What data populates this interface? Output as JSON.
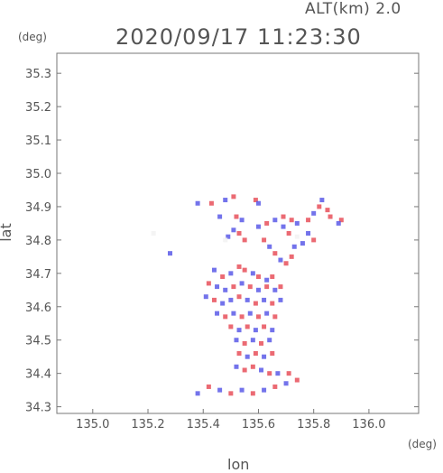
{
  "header": {
    "altitude_label": "ALT(km) 2.0",
    "timestamp": "2020/09/17 11:23:30",
    "y_unit": "(deg)",
    "x_unit": "(deg)"
  },
  "chart_data": {
    "type": "heatmap",
    "title": "2020/09/17 11:23:30",
    "subtitle": "ALT(km) 2.0",
    "xlabel": "lon",
    "ylabel": "lat",
    "x_unit": "(deg)",
    "y_unit": "(deg)",
    "xlim": [
      134.87,
      136.18
    ],
    "ylim": [
      34.28,
      35.36
    ],
    "x_ticks": [
      "135.0",
      "135.2",
      "135.4",
      "135.6",
      "135.8",
      "136.0"
    ],
    "y_ticks": [
      "34.3",
      "34.4",
      "34.5",
      "34.6",
      "34.7",
      "34.8",
      "34.9",
      "35.0",
      "35.1",
      "35.2",
      "35.3"
    ],
    "grid": false,
    "colors": {
      "positive": "#e8505a",
      "negative": "#5a5ae8",
      "neutral": "#f2f2f2"
    },
    "cells": [
      [
        135.22,
        34.82,
        0
      ],
      [
        135.28,
        34.76,
        -1
      ],
      [
        135.48,
        34.92,
        -1
      ],
      [
        135.51,
        34.93,
        1
      ],
      [
        135.59,
        34.92,
        1
      ],
      [
        135.6,
        34.91,
        -1
      ],
      [
        135.38,
        34.91,
        -1
      ],
      [
        135.43,
        34.91,
        1
      ],
      [
        135.46,
        34.87,
        -1
      ],
      [
        135.52,
        34.87,
        1
      ],
      [
        135.54,
        34.86,
        -1
      ],
      [
        135.51,
        34.83,
        -1
      ],
      [
        135.53,
        34.82,
        1
      ],
      [
        135.49,
        34.81,
        -1
      ],
      [
        135.55,
        34.8,
        1
      ],
      [
        135.48,
        34.8,
        0
      ],
      [
        135.6,
        34.84,
        -1
      ],
      [
        135.63,
        34.85,
        1
      ],
      [
        135.66,
        34.86,
        -1
      ],
      [
        135.69,
        34.87,
        1
      ],
      [
        135.72,
        34.86,
        1
      ],
      [
        135.74,
        34.85,
        -1
      ],
      [
        135.78,
        34.86,
        1
      ],
      [
        135.8,
        34.88,
        -1
      ],
      [
        135.82,
        34.9,
        1
      ],
      [
        135.83,
        34.92,
        -1
      ],
      [
        135.85,
        34.89,
        1
      ],
      [
        135.86,
        34.87,
        1
      ],
      [
        135.78,
        34.82,
        -1
      ],
      [
        135.8,
        34.8,
        1
      ],
      [
        135.76,
        34.79,
        -1
      ],
      [
        135.74,
        34.81,
        0
      ],
      [
        135.62,
        34.8,
        1
      ],
      [
        135.64,
        34.78,
        -1
      ],
      [
        135.66,
        34.76,
        1
      ],
      [
        135.68,
        34.74,
        -1
      ],
      [
        135.7,
        34.73,
        1
      ],
      [
        135.72,
        34.75,
        1
      ],
      [
        135.73,
        34.78,
        -1
      ],
      [
        135.71,
        34.82,
        1
      ],
      [
        135.69,
        34.84,
        -1
      ],
      [
        135.9,
        34.86,
        1
      ],
      [
        135.89,
        34.85,
        -1
      ],
      [
        135.44,
        34.71,
        -1
      ],
      [
        135.47,
        34.69,
        1
      ],
      [
        135.5,
        34.7,
        -1
      ],
      [
        135.53,
        34.72,
        1
      ],
      [
        135.55,
        34.71,
        1
      ],
      [
        135.58,
        34.7,
        -1
      ],
      [
        135.6,
        34.69,
        1
      ],
      [
        135.63,
        34.68,
        -1
      ],
      [
        135.65,
        34.69,
        1
      ],
      [
        135.42,
        34.67,
        1
      ],
      [
        135.45,
        34.66,
        -1
      ],
      [
        135.48,
        34.65,
        -1
      ],
      [
        135.51,
        34.66,
        1
      ],
      [
        135.54,
        34.67,
        -1
      ],
      [
        135.57,
        34.66,
        1
      ],
      [
        135.6,
        34.65,
        -1
      ],
      [
        135.63,
        34.66,
        1
      ],
      [
        135.66,
        34.65,
        -1
      ],
      [
        135.68,
        34.66,
        1
      ],
      [
        135.41,
        34.63,
        -1
      ],
      [
        135.44,
        34.62,
        1
      ],
      [
        135.47,
        34.61,
        -1
      ],
      [
        135.5,
        34.62,
        -1
      ],
      [
        135.53,
        34.63,
        1
      ],
      [
        135.56,
        34.62,
        -1
      ],
      [
        135.59,
        34.61,
        1
      ],
      [
        135.62,
        34.62,
        -1
      ],
      [
        135.65,
        34.61,
        1
      ],
      [
        135.68,
        34.62,
        -1
      ],
      [
        135.45,
        34.58,
        -1
      ],
      [
        135.48,
        34.57,
        1
      ],
      [
        135.51,
        34.58,
        -1
      ],
      [
        135.54,
        34.57,
        1
      ],
      [
        135.57,
        34.58,
        -1
      ],
      [
        135.6,
        34.57,
        1
      ],
      [
        135.63,
        34.58,
        -1
      ],
      [
        135.66,
        34.57,
        1
      ],
      [
        135.5,
        34.54,
        1
      ],
      [
        135.53,
        34.53,
        -1
      ],
      [
        135.56,
        34.54,
        1
      ],
      [
        135.59,
        34.53,
        -1
      ],
      [
        135.62,
        34.54,
        1
      ],
      [
        135.65,
        34.53,
        -1
      ],
      [
        135.52,
        34.5,
        -1
      ],
      [
        135.55,
        34.49,
        1
      ],
      [
        135.58,
        34.5,
        -1
      ],
      [
        135.61,
        34.49,
        1
      ],
      [
        135.64,
        34.5,
        -1
      ],
      [
        135.53,
        34.46,
        1
      ],
      [
        135.56,
        34.45,
        -1
      ],
      [
        135.59,
        34.46,
        1
      ],
      [
        135.62,
        34.45,
        -1
      ],
      [
        135.65,
        34.46,
        1
      ],
      [
        135.52,
        34.42,
        -1
      ],
      [
        135.55,
        34.41,
        1
      ],
      [
        135.58,
        34.42,
        1
      ],
      [
        135.61,
        34.41,
        -1
      ],
      [
        135.64,
        34.4,
        1
      ],
      [
        135.67,
        34.4,
        -1
      ],
      [
        135.71,
        34.4,
        1
      ],
      [
        135.38,
        34.34,
        -1
      ],
      [
        135.42,
        34.36,
        1
      ],
      [
        135.46,
        34.35,
        -1
      ],
      [
        135.5,
        34.34,
        1
      ],
      [
        135.54,
        34.35,
        -1
      ],
      [
        135.58,
        34.34,
        1
      ],
      [
        135.62,
        34.35,
        -1
      ],
      [
        135.66,
        34.36,
        1
      ],
      [
        135.7,
        34.37,
        -1
      ],
      [
        135.74,
        34.38,
        1
      ]
    ]
  }
}
